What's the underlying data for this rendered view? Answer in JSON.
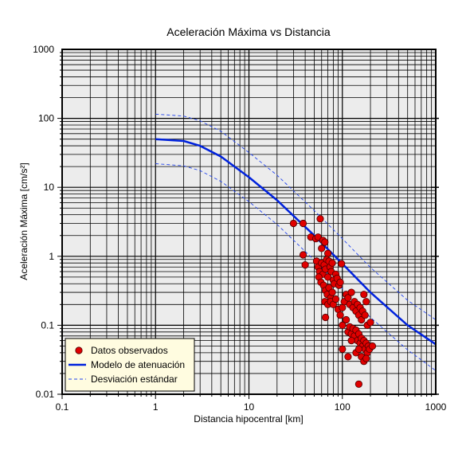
{
  "chart_data": {
    "type": "scatter",
    "title": "Aceleración Máxima vs Distancia",
    "xlabel": "Distancia hipocentral [km]",
    "ylabel": "Aceleración Máxima [cm/s²]",
    "xscale": "log",
    "yscale": "log",
    "xlim": [
      0.1,
      1000
    ],
    "ylim": [
      0.01,
      1000
    ],
    "grid": true,
    "legend_position": "bottom-left",
    "x_tick_labels": [
      "0.1",
      "1",
      "10",
      "100",
      "1000"
    ],
    "y_tick_labels": [
      "0.01",
      "0.1",
      "1",
      "10",
      "100",
      "1000"
    ],
    "colors": {
      "points": "#e00000",
      "point_edge": "#4a0000",
      "model": "#0022dd",
      "deviation": "#2244ee",
      "plot_background": "#ececec",
      "legend_background": "#fffce0"
    },
    "series": [
      {
        "name": "Datos observados",
        "kind": "scatter",
        "points": [
          [
            30,
            3.0
          ],
          [
            38,
            3.0
          ],
          [
            58,
            3.5
          ],
          [
            46,
            1.9
          ],
          [
            52,
            1.8
          ],
          [
            55,
            1.9
          ],
          [
            62,
            1.7
          ],
          [
            65,
            1.6
          ],
          [
            38,
            1.05
          ],
          [
            40,
            0.75
          ],
          [
            60,
            1.3
          ],
          [
            70,
            1.1
          ],
          [
            53,
            0.85
          ],
          [
            55,
            0.7
          ],
          [
            57,
            0.6
          ],
          [
            60,
            0.8
          ],
          [
            62,
            0.55
          ],
          [
            64,
            0.75
          ],
          [
            66,
            0.65
          ],
          [
            68,
            0.9
          ],
          [
            70,
            0.5
          ],
          [
            72,
            0.85
          ],
          [
            74,
            0.7
          ],
          [
            76,
            0.6
          ],
          [
            78,
            0.8
          ],
          [
            80,
            0.45
          ],
          [
            56,
            0.5
          ],
          [
            59,
            0.42
          ],
          [
            63,
            0.38
          ],
          [
            66,
            0.32
          ],
          [
            69,
            0.28
          ],
          [
            72,
            0.35
          ],
          [
            75,
            0.25
          ],
          [
            78,
            0.3
          ],
          [
            82,
            0.4
          ],
          [
            85,
            0.55
          ],
          [
            88,
            0.48
          ],
          [
            92,
            0.38
          ],
          [
            95,
            0.42
          ],
          [
            98,
            0.78
          ],
          [
            65,
            0.22
          ],
          [
            70,
            0.2
          ],
          [
            75,
            0.22
          ],
          [
            80,
            0.2
          ],
          [
            85,
            0.24
          ],
          [
            90,
            0.17
          ],
          [
            95,
            0.14
          ],
          [
            100,
            0.18
          ],
          [
            105,
            0.22
          ],
          [
            110,
            0.28
          ],
          [
            115,
            0.25
          ],
          [
            120,
            0.2
          ],
          [
            125,
            0.3
          ],
          [
            130,
            0.18
          ],
          [
            135,
            0.22
          ],
          [
            140,
            0.16
          ],
          [
            145,
            0.2
          ],
          [
            150,
            0.14
          ],
          [
            155,
            0.18
          ],
          [
            160,
            0.12
          ],
          [
            165,
            0.16
          ],
          [
            170,
            0.28
          ],
          [
            175,
            0.14
          ],
          [
            180,
            0.22
          ],
          [
            185,
            0.1
          ],
          [
            66,
            0.13
          ],
          [
            100,
            0.1
          ],
          [
            110,
            0.12
          ],
          [
            115,
            0.08
          ],
          [
            120,
            0.095
          ],
          [
            125,
            0.075
          ],
          [
            130,
            0.09
          ],
          [
            135,
            0.07
          ],
          [
            140,
            0.085
          ],
          [
            145,
            0.06
          ],
          [
            150,
            0.075
          ],
          [
            155,
            0.055
          ],
          [
            160,
            0.065
          ],
          [
            165,
            0.05
          ],
          [
            170,
            0.06
          ],
          [
            175,
            0.045
          ],
          [
            180,
            0.055
          ],
          [
            185,
            0.04
          ],
          [
            190,
            0.05
          ],
          [
            195,
            0.045
          ],
          [
            200,
            0.11
          ],
          [
            210,
            0.05
          ],
          [
            100,
            0.045
          ],
          [
            115,
            0.035
          ],
          [
            125,
            0.06
          ],
          [
            140,
            0.04
          ],
          [
            150,
            0.045
          ],
          [
            160,
            0.035
          ],
          [
            170,
            0.03
          ],
          [
            180,
            0.033
          ],
          [
            150,
            0.014
          ]
        ]
      },
      {
        "name": "Modelo de atenuación",
        "kind": "line",
        "points": [
          [
            1,
            50
          ],
          [
            2,
            47
          ],
          [
            3,
            40
          ],
          [
            5,
            28
          ],
          [
            10,
            14
          ],
          [
            20,
            6.5
          ],
          [
            50,
            2.0
          ],
          [
            100,
            0.78
          ],
          [
            200,
            0.3
          ],
          [
            500,
            0.1
          ],
          [
            1000,
            0.053
          ]
        ]
      },
      {
        "name": "Desviación estándar",
        "kind": "dashed",
        "lines": [
          [
            [
              1,
              115
            ],
            [
              2,
              108
            ],
            [
              3,
              92
            ],
            [
              5,
              65
            ],
            [
              10,
              32
            ],
            [
              20,
              15
            ],
            [
              50,
              4.6
            ],
            [
              100,
              1.8
            ],
            [
              200,
              0.69
            ],
            [
              500,
              0.23
            ],
            [
              1000,
              0.12
            ]
          ],
          [
            [
              1,
              22
            ],
            [
              2,
              20.5
            ],
            [
              3,
              17.5
            ],
            [
              5,
              12.2
            ],
            [
              10,
              6.2
            ],
            [
              20,
              2.9
            ],
            [
              50,
              0.88
            ],
            [
              100,
              0.34
            ],
            [
              200,
              0.13
            ],
            [
              500,
              0.044
            ],
            [
              1000,
              0.022
            ]
          ]
        ]
      }
    ]
  }
}
